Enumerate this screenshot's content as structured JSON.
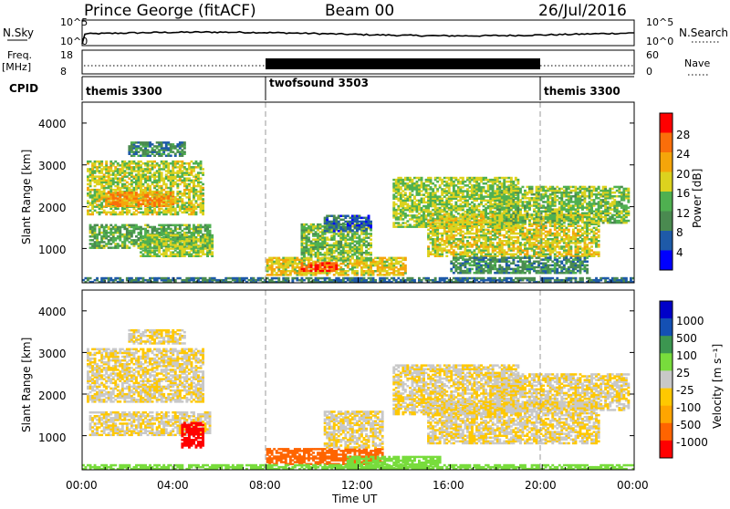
{
  "header": {
    "station": "Prince George (fitACF)",
    "beam": "Beam 00",
    "date": "26/Jul/2016"
  },
  "status_panel": {
    "nsky_label": "N.Sky",
    "nsearch_label": "N.Search",
    "nsky_ticks": [
      "10^5",
      "10^0"
    ],
    "nsearch_ticks": [
      "10^5",
      "10^0"
    ]
  },
  "freq_panel": {
    "freq_label": "Freq.",
    "freq_unit": "[MHz]",
    "freq_ticks": [
      "18",
      "8"
    ],
    "nave_label": "Nave",
    "nave_ticks": [
      "60",
      "0"
    ]
  },
  "cpid_panel": {
    "label": "CPID",
    "modes": [
      {
        "name": "themis 3300",
        "start_hour": 0,
        "end_hour": 8
      },
      {
        "name": "twofsound 3503",
        "start_hour": 8,
        "end_hour": 20
      },
      {
        "name": "themis 3300",
        "start_hour": 20,
        "end_hour": 24
      }
    ]
  },
  "x_axis": {
    "label": "Time UT",
    "ticks": [
      "00:00",
      "04:00",
      "08:00",
      "12:00",
      "16:00",
      "20:00",
      "00:00"
    ]
  },
  "colors": {
    "power": [
      "#0000ff",
      "#1e5aa8",
      "#4a8a50",
      "#4fb050",
      "#dcd21e",
      "#f5a50a",
      "#fa6e0a",
      "#ff0000"
    ],
    "velocity": [
      "#ff0000",
      "#ff6400",
      "#ffa500",
      "#ffc800",
      "#c8c8c8",
      "#78dc3c",
      "#3c9650",
      "#1450b4",
      "#0000c8"
    ]
  },
  "chart_data": [
    {
      "type": "heatmap",
      "panel": "power",
      "xlabel": "",
      "ylabel": "Slant Range [km]",
      "x_range_hours": [
        0,
        24
      ],
      "ylim": [
        180,
        4500
      ],
      "y_ticks": [
        "4000",
        "3000",
        "2000",
        "1000"
      ],
      "colorbar_label": "Power [dB]",
      "colorbar_ticks": [
        "28",
        "24",
        "20",
        "16",
        "12",
        "8",
        "4"
      ],
      "colorbar_range": [
        0,
        32
      ],
      "regions": [
        {
          "t": [
            0.2,
            5.2
          ],
          "r": [
            1800,
            3100
          ],
          "v": 17
        },
        {
          "t": [
            1.0,
            4.0
          ],
          "r": [
            2000,
            2350
          ],
          "v": 23
        },
        {
          "t": [
            0.3,
            5.5
          ],
          "r": [
            1000,
            1550
          ],
          "v": 13
        },
        {
          "t": [
            2.5,
            5.6
          ],
          "r": [
            800,
            1300
          ],
          "v": 16
        },
        {
          "t": [
            2.0,
            4.5
          ],
          "r": [
            3200,
            3550
          ],
          "v": 10
        },
        {
          "t": [
            8.0,
            14.0
          ],
          "r": [
            350,
            800
          ],
          "v": 19
        },
        {
          "t": [
            9.5,
            11.0
          ],
          "r": [
            450,
            650
          ],
          "v": 27
        },
        {
          "t": [
            9.5,
            12.5
          ],
          "r": [
            700,
            1600
          ],
          "v": 15
        },
        {
          "t": [
            10.5,
            12.5
          ],
          "r": [
            1400,
            1800
          ],
          "v": 7
        },
        {
          "t": [
            13.5,
            19.0
          ],
          "r": [
            1500,
            2700
          ],
          "v": 16
        },
        {
          "t": [
            15.0,
            22.5
          ],
          "r": [
            800,
            1800
          ],
          "v": 18
        },
        {
          "t": [
            18.0,
            23.8
          ],
          "r": [
            1600,
            2500
          ],
          "v": 15
        },
        {
          "t": [
            16.0,
            22.0
          ],
          "r": [
            400,
            800
          ],
          "v": 10
        },
        {
          "t": [
            0.0,
            24.0
          ],
          "r": [
            180,
            300
          ],
          "v": 8
        }
      ]
    },
    {
      "type": "heatmap",
      "panel": "velocity",
      "xlabel": "Time UT",
      "ylabel": "Slant Range [km]",
      "x_range_hours": [
        0,
        24
      ],
      "ylim": [
        180,
        4500
      ],
      "y_ticks": [
        "4000",
        "3000",
        "2000",
        "1000"
      ],
      "colorbar_label": "Velocity [m s⁻¹]",
      "colorbar_ticks": [
        "1000",
        "500",
        "100",
        "25",
        "-25",
        "-100",
        "-500",
        "-1000"
      ],
      "colorbar_range": [
        -1000,
        1000
      ],
      "regions": [
        {
          "t": [
            0.2,
            5.2
          ],
          "r": [
            1800,
            3100
          ],
          "v": 0
        },
        {
          "t": [
            0.3,
            5.5
          ],
          "r": [
            1000,
            1550
          ],
          "v": 0
        },
        {
          "t": [
            2.0,
            4.5
          ],
          "r": [
            3200,
            3550
          ],
          "v": 0
        },
        {
          "t": [
            4.3,
            5.2
          ],
          "r": [
            700,
            1300
          ],
          "v": -600
        },
        {
          "t": [
            8.0,
            13.0
          ],
          "r": [
            300,
            700
          ],
          "v": -150
        },
        {
          "t": [
            10.5,
            13.0
          ],
          "r": [
            700,
            1600
          ],
          "v": 0
        },
        {
          "t": [
            11.5,
            15.5
          ],
          "r": [
            200,
            500
          ],
          "v": 60
        },
        {
          "t": [
            13.5,
            19.0
          ],
          "r": [
            1500,
            2700
          ],
          "v": 0
        },
        {
          "t": [
            15.0,
            22.5
          ],
          "r": [
            800,
            1800
          ],
          "v": 0
        },
        {
          "t": [
            18.0,
            23.8
          ],
          "r": [
            1600,
            2500
          ],
          "v": 0
        },
        {
          "t": [
            0.0,
            24.0
          ],
          "r": [
            180,
            300
          ],
          "v": 40
        }
      ]
    }
  ]
}
